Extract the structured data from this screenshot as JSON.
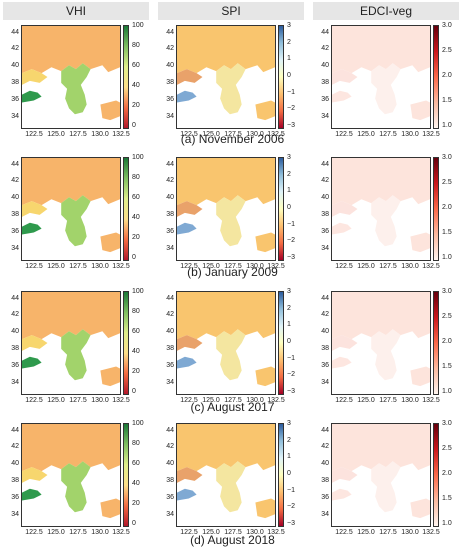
{
  "columns": [
    "VHI",
    "SPI",
    "EDCI-veg"
  ],
  "row_captions": [
    "(a) November 2006",
    "(b) January 2009",
    "(c) August 2017",
    "(d) August 2018"
  ],
  "y_ticks": [
    "44",
    "42",
    "40",
    "38",
    "36",
    "34"
  ],
  "x_ticks": [
    "122.5",
    "125.0",
    "127.5",
    "130.0",
    "132.5"
  ],
  "colorbars": [
    {
      "variable": "VHI",
      "ticks": [
        "100",
        "80",
        "60",
        "40",
        "20",
        "0"
      ],
      "colors": [
        "#1a7837",
        "#7fbf62",
        "#e0ef8c",
        "#fde08a",
        "#f46d43",
        "#b2182b"
      ]
    },
    {
      "variable": "SPI",
      "ticks": [
        "3",
        "2",
        "1",
        "0",
        "−1",
        "−2",
        "−3"
      ],
      "colors": [
        "#2c5c9e",
        "#91bfdb",
        "#e0f3f8",
        "#ffffbf",
        "#fdbf6f",
        "#f46d43",
        "#a50026"
      ]
    },
    {
      "variable": "EDCI-veg",
      "ticks": [
        "3.0",
        "2.5",
        "2.0",
        "1.5",
        "1.0"
      ],
      "colors": [
        "#67000d",
        "#cb181d",
        "#fb6a4a",
        "#fcbba1",
        "#fff5f0"
      ]
    }
  ],
  "map_colors": {
    "VHI": [
      "#f7b46a",
      "#f7d66e",
      "#a2d36b",
      "#2f9a4d"
    ],
    "SPI": [
      "#f9c56e",
      "#e9a26a",
      "#f4e6a0",
      "#7fa9d3"
    ],
    "EDCI-veg": [
      "#fde4dc",
      "#fce3de",
      "#fdf0ec",
      "#fde6e0"
    ]
  }
}
